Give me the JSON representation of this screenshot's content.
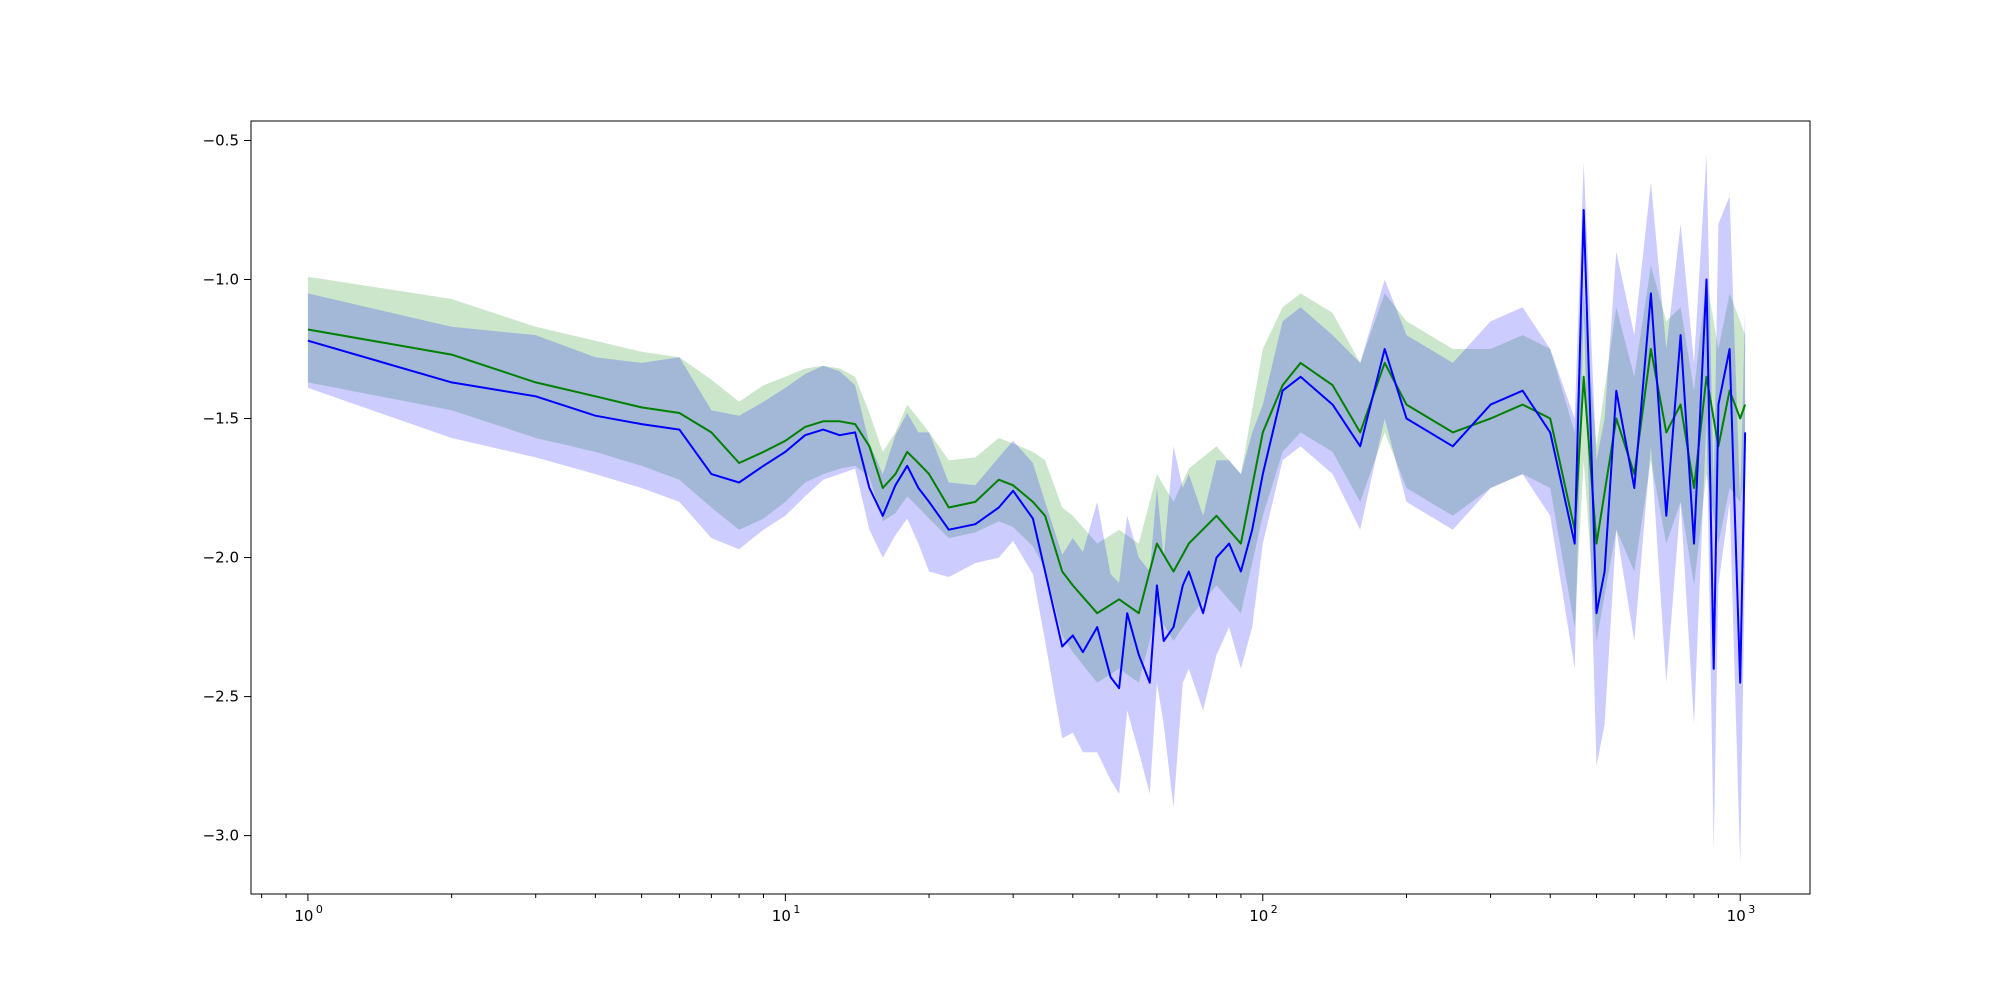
{
  "chart_data": {
    "type": "line",
    "title": "",
    "xlabel": "",
    "ylabel": "",
    "xscale": "log",
    "xlim": [
      0.76,
      1400
    ],
    "ylim": [
      -3.21,
      -0.43
    ],
    "grid": false,
    "legend": "none",
    "x_ticks": [
      {
        "base": "10",
        "exp": "0",
        "value": 1
      },
      {
        "base": "10",
        "exp": "1",
        "value": 10
      },
      {
        "base": "10",
        "exp": "2",
        "value": 100
      },
      {
        "base": "10",
        "exp": "3",
        "value": 1000
      }
    ],
    "y_ticks": [
      {
        "label": "−0.5",
        "value": -0.5
      },
      {
        "label": "−1.0",
        "value": -1.0
      },
      {
        "label": "−1.5",
        "value": -1.5
      },
      {
        "label": "−2.0",
        "value": -2.0
      },
      {
        "label": "−2.5",
        "value": -2.5
      },
      {
        "label": "−3.0",
        "value": -3.0
      }
    ],
    "series": [
      {
        "color": "#008000",
        "band_color": "#008000",
        "band_opacity": 0.2,
        "x": [
          1,
          2,
          3,
          4,
          5,
          6,
          7,
          8,
          9,
          10,
          11,
          12,
          13,
          14,
          15,
          16,
          17,
          18,
          19,
          20,
          22,
          25,
          28,
          30,
          33,
          35,
          38,
          40,
          45,
          50,
          55,
          60,
          65,
          70,
          80,
          90,
          100,
          110,
          120,
          140,
          160,
          180,
          200,
          250,
          300,
          350,
          400,
          450,
          470,
          500,
          550,
          600,
          650,
          700,
          750,
          800,
          850,
          900,
          950,
          1000,
          1024
        ],
        "y": [
          -1.18,
          -1.27,
          -1.37,
          -1.42,
          -1.46,
          -1.48,
          -1.55,
          -1.66,
          -1.62,
          -1.58,
          -1.53,
          -1.51,
          -1.51,
          -1.52,
          -1.6,
          -1.75,
          -1.7,
          -1.62,
          -1.66,
          -1.7,
          -1.82,
          -1.8,
          -1.72,
          -1.74,
          -1.8,
          -1.85,
          -2.05,
          -2.1,
          -2.2,
          -2.15,
          -2.2,
          -1.95,
          -2.05,
          -1.95,
          -1.85,
          -1.95,
          -1.55,
          -1.38,
          -1.3,
          -1.38,
          -1.55,
          -1.3,
          -1.45,
          -1.55,
          -1.5,
          -1.45,
          -1.5,
          -1.9,
          -1.35,
          -1.95,
          -1.5,
          -1.7,
          -1.25,
          -1.55,
          -1.45,
          -1.75,
          -1.35,
          -1.6,
          -1.4,
          -1.5,
          -1.45
        ],
        "lower": [
          -1.37,
          -1.47,
          -1.57,
          -1.62,
          -1.67,
          -1.72,
          -1.82,
          -1.9,
          -1.86,
          -1.8,
          -1.73,
          -1.7,
          -1.68,
          -1.67,
          -1.71,
          -1.87,
          -1.84,
          -1.78,
          -1.82,
          -1.86,
          -1.93,
          -1.91,
          -1.87,
          -1.89,
          -1.96,
          -2.04,
          -2.28,
          -2.34,
          -2.45,
          -2.4,
          -2.45,
          -2.2,
          -2.3,
          -2.22,
          -2.1,
          -2.2,
          -1.85,
          -1.62,
          -1.55,
          -1.62,
          -1.8,
          -1.55,
          -1.75,
          -1.85,
          -1.75,
          -1.7,
          -1.75,
          -2.25,
          -1.65,
          -2.3,
          -1.9,
          -2.05,
          -1.65,
          -1.95,
          -1.8,
          -2.1,
          -1.7,
          -1.95,
          -1.75,
          -1.8,
          -1.7
        ],
        "upper": [
          -0.99,
          -1.07,
          -1.17,
          -1.22,
          -1.26,
          -1.28,
          -1.36,
          -1.44,
          -1.38,
          -1.35,
          -1.32,
          -1.31,
          -1.32,
          -1.35,
          -1.48,
          -1.62,
          -1.55,
          -1.45,
          -1.5,
          -1.55,
          -1.65,
          -1.64,
          -1.57,
          -1.59,
          -1.62,
          -1.65,
          -1.82,
          -1.85,
          -1.95,
          -1.9,
          -1.95,
          -1.7,
          -1.8,
          -1.68,
          -1.6,
          -1.7,
          -1.25,
          -1.1,
          -1.05,
          -1.12,
          -1.3,
          -1.05,
          -1.15,
          -1.25,
          -1.25,
          -1.2,
          -1.25,
          -1.55,
          -1.05,
          -1.6,
          -1.1,
          -1.35,
          -0.95,
          -1.15,
          -1.1,
          -1.4,
          -1.0,
          -1.25,
          -1.05,
          -1.15,
          -1.2
        ]
      },
      {
        "color": "#0000ff",
        "band_color": "#0000ff",
        "band_opacity": 0.2,
        "x": [
          1,
          2,
          3,
          4,
          5,
          6,
          7,
          8,
          9,
          10,
          11,
          12,
          13,
          14,
          15,
          16,
          17,
          18,
          19,
          20,
          22,
          25,
          28,
          30,
          33,
          35,
          38,
          40,
          42,
          45,
          48,
          50,
          52,
          55,
          58,
          60,
          62,
          65,
          68,
          70,
          75,
          80,
          85,
          90,
          95,
          100,
          110,
          120,
          140,
          160,
          180,
          200,
          250,
          300,
          350,
          400,
          450,
          470,
          500,
          520,
          550,
          600,
          650,
          700,
          750,
          800,
          850,
          880,
          900,
          950,
          1000,
          1024
        ],
        "y": [
          -1.22,
          -1.37,
          -1.42,
          -1.49,
          -1.52,
          -1.54,
          -1.7,
          -1.73,
          -1.67,
          -1.62,
          -1.56,
          -1.54,
          -1.56,
          -1.55,
          -1.75,
          -1.85,
          -1.74,
          -1.67,
          -1.75,
          -1.8,
          -1.9,
          -1.88,
          -1.82,
          -1.76,
          -1.86,
          -2.05,
          -2.32,
          -2.28,
          -2.34,
          -2.25,
          -2.43,
          -2.47,
          -2.2,
          -2.35,
          -2.45,
          -2.1,
          -2.3,
          -2.25,
          -2.1,
          -2.05,
          -2.2,
          -2.0,
          -1.95,
          -2.05,
          -1.9,
          -1.7,
          -1.4,
          -1.35,
          -1.45,
          -1.6,
          -1.25,
          -1.5,
          -1.6,
          -1.45,
          -1.4,
          -1.55,
          -1.95,
          -0.75,
          -2.2,
          -2.05,
          -1.4,
          -1.75,
          -1.05,
          -1.85,
          -1.2,
          -1.95,
          -1.0,
          -2.4,
          -1.45,
          -1.25,
          -2.45,
          -1.55
        ],
        "lower": [
          -1.39,
          -1.57,
          -1.64,
          -1.7,
          -1.75,
          -1.8,
          -1.93,
          -1.97,
          -1.9,
          -1.85,
          -1.78,
          -1.72,
          -1.7,
          -1.68,
          -1.9,
          -2.0,
          -1.92,
          -1.86,
          -1.95,
          -2.05,
          -2.07,
          -2.02,
          -2.0,
          -1.94,
          -2.06,
          -2.3,
          -2.65,
          -2.63,
          -2.7,
          -2.7,
          -2.8,
          -2.85,
          -2.55,
          -2.7,
          -2.85,
          -2.45,
          -2.6,
          -2.9,
          -2.45,
          -2.4,
          -2.55,
          -2.35,
          -2.25,
          -2.4,
          -2.25,
          -1.95,
          -1.65,
          -1.6,
          -1.7,
          -1.9,
          -1.5,
          -1.8,
          -1.9,
          -1.75,
          -1.7,
          -1.85,
          -2.4,
          -1.1,
          -2.75,
          -2.6,
          -1.9,
          -2.3,
          -1.6,
          -2.45,
          -1.8,
          -2.6,
          -1.5,
          -3.05,
          -2.1,
          -1.8,
          -3.1,
          -2.0
        ],
        "upper": [
          -1.05,
          -1.17,
          -1.2,
          -1.28,
          -1.3,
          -1.28,
          -1.47,
          -1.49,
          -1.44,
          -1.39,
          -1.34,
          -1.31,
          -1.33,
          -1.38,
          -1.59,
          -1.7,
          -1.56,
          -1.48,
          -1.55,
          -1.55,
          -1.73,
          -1.74,
          -1.64,
          -1.58,
          -1.66,
          -1.8,
          -1.99,
          -1.93,
          -1.98,
          -1.8,
          -2.06,
          -2.09,
          -1.85,
          -2.0,
          -2.05,
          -1.75,
          -2.0,
          -1.6,
          -1.75,
          -1.7,
          -1.85,
          -1.65,
          -1.65,
          -1.7,
          -1.55,
          -1.45,
          -1.15,
          -1.1,
          -1.2,
          -1.3,
          -1.0,
          -1.2,
          -1.3,
          -1.15,
          -1.1,
          -1.25,
          -1.5,
          -0.58,
          -1.65,
          -1.5,
          -0.9,
          -1.2,
          -0.65,
          -1.25,
          -0.8,
          -1.3,
          -0.55,
          -1.75,
          -0.8,
          -0.7,
          -1.8,
          -1.1
        ]
      }
    ]
  }
}
